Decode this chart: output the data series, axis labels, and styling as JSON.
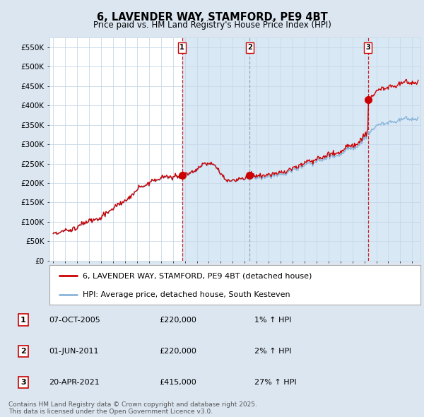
{
  "title": "6, LAVENDER WAY, STAMFORD, PE9 4BT",
  "subtitle": "Price paid vs. HM Land Registry's House Price Index (HPI)",
  "legend_property": "6, LAVENDER WAY, STAMFORD, PE9 4BT (detached house)",
  "legend_hpi": "HPI: Average price, detached house, South Kesteven",
  "footnote": "Contains HM Land Registry data © Crown copyright and database right 2025.\nThis data is licensed under the Open Government Licence v3.0.",
  "ylim": [
    0,
    575000
  ],
  "yticks": [
    0,
    50000,
    100000,
    150000,
    200000,
    250000,
    300000,
    350000,
    400000,
    450000,
    500000,
    550000
  ],
  "ytick_labels": [
    "£0",
    "£50K",
    "£100K",
    "£150K",
    "£200K",
    "£250K",
    "£300K",
    "£350K",
    "£400K",
    "£450K",
    "£500K",
    "£550K"
  ],
  "xlim_start": 1994.7,
  "xlim_end": 2025.7,
  "sales": [
    {
      "label": "1",
      "year": 2005.77,
      "price": 220000,
      "pct": "1%",
      "date_str": "07-OCT-2005",
      "price_str": "£220,000"
    },
    {
      "label": "2",
      "year": 2011.42,
      "price": 220000,
      "pct": "2%",
      "date_str": "01-JUN-2011",
      "price_str": "£220,000"
    },
    {
      "label": "3",
      "year": 2021.3,
      "price": 415000,
      "pct": "27%",
      "date_str": "20-APR-2021",
      "price_str": "£415,000"
    }
  ],
  "property_color": "#cc0000",
  "hpi_color": "#89b4d9",
  "shade_color": "#d8e8f5",
  "background_color": "#dce6f1",
  "plot_bg_color": "#ffffff",
  "grid_color": "#c8d8e8",
  "title_fontsize": 10.5,
  "subtitle_fontsize": 8.5,
  "tick_fontsize": 7.5,
  "legend_fontsize": 8,
  "footnote_fontsize": 6.5
}
